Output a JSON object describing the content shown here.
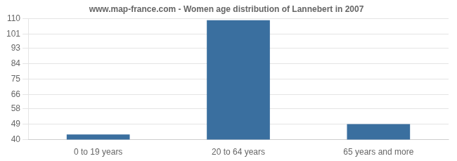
{
  "chart_data": {
    "type": "bar",
    "title": "www.map-france.com - Women age distribution of Lannebert in 2007",
    "categories": [
      "0 to 19 years",
      "20 to 64 years",
      "65 years and more"
    ],
    "values": [
      43,
      109,
      49
    ],
    "color": "#3a6f9f",
    "ylim": [
      40,
      110
    ],
    "yticks": [
      40,
      49,
      58,
      66,
      75,
      84,
      93,
      101,
      110
    ],
    "grid": true
  }
}
